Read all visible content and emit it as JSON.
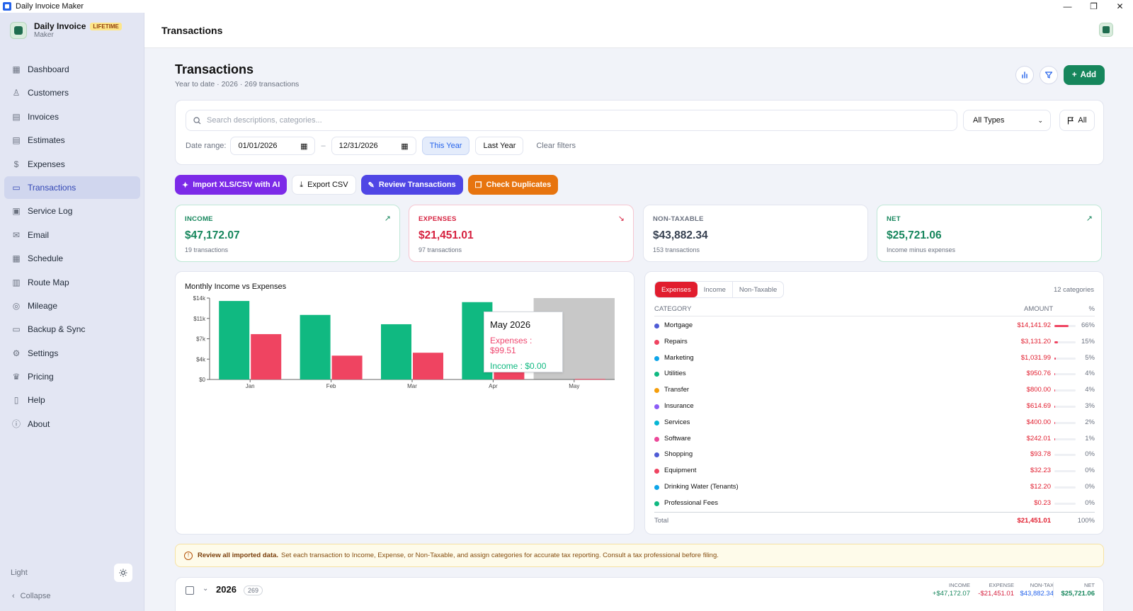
{
  "window": {
    "title": "Daily Invoice Maker",
    "controls": [
      "—",
      "❐",
      "✕"
    ]
  },
  "brand": {
    "name": "Daily Invoice",
    "sub": "Maker",
    "badge": "LIFETIME"
  },
  "sidebar": {
    "items": [
      {
        "label": "Dashboard",
        "icon": "dashboard-icon"
      },
      {
        "label": "Customers",
        "icon": "users-icon"
      },
      {
        "label": "Invoices",
        "icon": "document-icon"
      },
      {
        "label": "Estimates",
        "icon": "estimate-icon"
      },
      {
        "label": "Expenses",
        "icon": "dollar-icon"
      },
      {
        "label": "Transactions",
        "icon": "card-icon",
        "active": true
      },
      {
        "label": "Service Log",
        "icon": "clipboard-icon"
      },
      {
        "label": "Email",
        "icon": "mail-icon"
      },
      {
        "label": "Schedule",
        "icon": "calendar-icon"
      },
      {
        "label": "Route Map",
        "icon": "map-icon"
      },
      {
        "label": "Mileage",
        "icon": "pin-icon"
      },
      {
        "label": "Backup & Sync",
        "icon": "drive-icon"
      },
      {
        "label": "Settings",
        "icon": "gear-icon"
      },
      {
        "label": "Pricing",
        "icon": "crown-icon"
      },
      {
        "label": "Help",
        "icon": "book-icon"
      },
      {
        "label": "About",
        "icon": "info-icon"
      }
    ],
    "theme_label": "Light",
    "collapse_label": "Collapse"
  },
  "header": {
    "title": "Transactions"
  },
  "page": {
    "title": "Transactions",
    "subtitle": "Year to date · 2026 · 269 transactions",
    "add_label": "Add"
  },
  "filters": {
    "search_placeholder": "Search descriptions, categories...",
    "type_select": "All Types",
    "flag_label": "All",
    "date_range_label": "Date range:",
    "date_from": "01/01/2026",
    "date_sep": "–",
    "date_to": "12/31/2026",
    "this_year": "This Year",
    "last_year": "Last Year",
    "clear": "Clear filters"
  },
  "actions": {
    "import": "Import XLS/CSV with AI",
    "export": "Export CSV",
    "review": "Review Transactions",
    "duplicates": "Check Duplicates"
  },
  "stats": {
    "income": {
      "label": "INCOME",
      "value": "$47,172.07",
      "count": "19 transactions",
      "color": "#16865c"
    },
    "expenses": {
      "label": "EXPENSES",
      "value": "$21,451.01",
      "count": "97 transactions",
      "color": "#d6213f"
    },
    "nontax": {
      "label": "NON-TAXABLE",
      "value": "$43,882.34",
      "count": "153 transactions",
      "color": "#4b5563"
    },
    "net": {
      "label": "NET",
      "value": "$25,721.06",
      "count": "Income minus expenses",
      "color": "#16865c"
    }
  },
  "chart_data": {
    "type": "bar",
    "title": "Monthly Income vs Expenses",
    "categories": [
      "Jan",
      "Feb",
      "Mar",
      "Apr",
      "May"
    ],
    "series": [
      {
        "name": "Income",
        "color": "#10b981",
        "values": [
          13500,
          11100,
          9500,
          13300,
          0
        ]
      },
      {
        "name": "Expenses",
        "color": "#ef4461",
        "values": [
          7800,
          4100,
          4600,
          4600,
          99.51
        ]
      }
    ],
    "yticks": [
      "$0",
      "$4k",
      "$7k",
      "$11k",
      "$14k"
    ],
    "ylim": [
      0,
      14000
    ],
    "highlight": "May",
    "tooltip": {
      "title": "May 2026",
      "expenses": "Expenses : $99.51",
      "income": "Income : $0.00"
    }
  },
  "categories": {
    "tabs": [
      "Expenses",
      "Income",
      "Non-Taxable"
    ],
    "count_label": "12 categories",
    "headers": {
      "category": "CATEGORY",
      "amount": "AMOUNT",
      "pct": "%"
    },
    "rows": [
      {
        "name": "Mortgage",
        "amount": "$14,141.92",
        "pct": "66%",
        "share": 0.66,
        "color": "#4f5bd5"
      },
      {
        "name": "Repairs",
        "amount": "$3,131.20",
        "pct": "15%",
        "share": 0.15,
        "color": "#ef4461"
      },
      {
        "name": "Marketing",
        "amount": "$1,031.99",
        "pct": "5%",
        "share": 0.05,
        "color": "#0ea5e9"
      },
      {
        "name": "Utilities",
        "amount": "$950.76",
        "pct": "4%",
        "share": 0.04,
        "color": "#10b981"
      },
      {
        "name": "Transfer",
        "amount": "$800.00",
        "pct": "4%",
        "share": 0.04,
        "color": "#f59e0b"
      },
      {
        "name": "Insurance",
        "amount": "$614.69",
        "pct": "3%",
        "share": 0.03,
        "color": "#8b5cf6"
      },
      {
        "name": "Services",
        "amount": "$400.00",
        "pct": "2%",
        "share": 0.02,
        "color": "#06b6d4"
      },
      {
        "name": "Software",
        "amount": "$242.01",
        "pct": "1%",
        "share": 0.01,
        "color": "#ec4899"
      },
      {
        "name": "Shopping",
        "amount": "$93.78",
        "pct": "0%",
        "share": 0.0,
        "color": "#4f5bd5"
      },
      {
        "name": "Equipment",
        "amount": "$32.23",
        "pct": "0%",
        "share": 0.0,
        "color": "#ef4461"
      },
      {
        "name": "Drinking Water (Tenants)",
        "amount": "$12.20",
        "pct": "0%",
        "share": 0.0,
        "color": "#0ea5e9"
      },
      {
        "name": "Professional Fees",
        "amount": "$0.23",
        "pct": "0%",
        "share": 0.0,
        "color": "#10b981"
      }
    ],
    "total_label": "Total",
    "total_amount": "$21,451.01",
    "total_pct": "100%"
  },
  "notice": {
    "bold": "Review all imported data.",
    "text": "Set each transaction to Income, Expense, or Non-Taxable, and assign categories for accurate tax reporting. Consult a tax professional before filing."
  },
  "year_group": {
    "year": "2026",
    "count": "269",
    "income_label": "INCOME",
    "income": "+$47,172.07",
    "expense_label": "EXPENSE",
    "expense": "-$21,451.01",
    "nontax_label": "NON-TAX",
    "nontax": "$43,882.34",
    "net_label": "NET",
    "net": "$25,721.06"
  }
}
